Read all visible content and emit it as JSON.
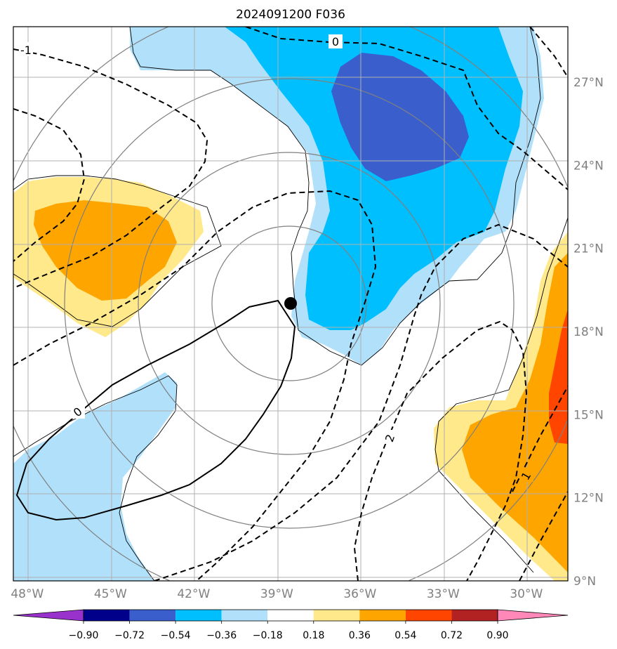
{
  "chart_data": {
    "type": "contour_map",
    "title": "2024091200 F036",
    "x_axis": {
      "ticks": [
        -48,
        -45,
        -42,
        -39,
        -36,
        -33,
        -30
      ],
      "tick_labels": [
        "48°W",
        "45°W",
        "42°W",
        "39°W",
        "36°W",
        "33°W",
        "30°W"
      ],
      "range": [
        -48.5,
        -28.5
      ]
    },
    "y_axis": {
      "ticks": [
        9,
        12,
        15,
        18,
        21,
        24,
        27
      ],
      "tick_labels": [
        "9°N",
        "12°N",
        "15°N",
        "18°N",
        "21°N",
        "24°N",
        "27°N"
      ],
      "range": [
        9,
        29
      ]
    },
    "grid": true,
    "colorbar": {
      "levels": [
        -0.9,
        -0.72,
        -0.54,
        -0.36,
        -0.18,
        0.18,
        0.36,
        0.54,
        0.72,
        0.9
      ],
      "labels": [
        "−0.90",
        "−0.72",
        "−0.54",
        "−0.36",
        "−0.18",
        "0.18",
        "0.36",
        "0.54",
        "0.72",
        "0.90"
      ],
      "colors": [
        "#9932cc",
        "#00008b",
        "#3a5fcd",
        "#00bfff",
        "#b0e0fa",
        "#ffffff",
        "#ffe98a",
        "#ffa500",
        "#ff4500",
        "#b22222",
        "#ff88b8"
      ],
      "extend": "both"
    },
    "center_marker": {
      "lon": -38.5,
      "lat": 18.9,
      "color": "#000000"
    },
    "dashed_contour_labels": [
      "-1",
      "0",
      "2",
      "1"
    ],
    "solid_contour_labels": [
      "0"
    ],
    "range_rings": "concentric gray circles around center"
  }
}
